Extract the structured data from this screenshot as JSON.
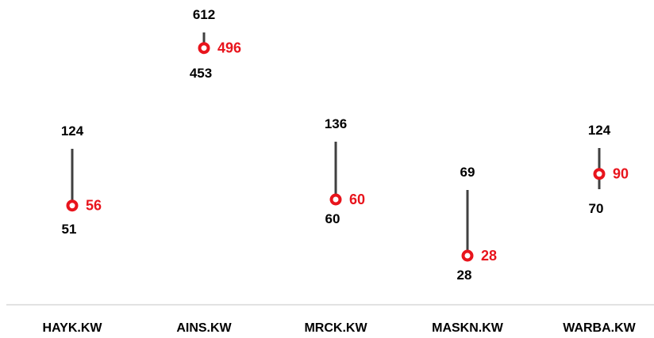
{
  "chart_data": {
    "type": "range-dot",
    "categories": [
      "HAYK.KW",
      "AINS.KW",
      "MRCK.KW",
      "MASKN.KW",
      "WARBA.KW"
    ],
    "series": [
      {
        "values": [
          124,
          612,
          136,
          69,
          124
        ]
      },
      {
        "values": [
          51,
          453,
          60,
          28,
          70
        ]
      },
      {
        "values": [
          56,
          496,
          60,
          28,
          90
        ]
      }
    ],
    "labels": {
      "high": [
        "124",
        "612",
        "136",
        "69",
        "124"
      ],
      "low": [
        "51",
        "453",
        "60",
        "28",
        "70"
      ],
      "current": [
        "56",
        "496",
        "60",
        "28",
        "90"
      ]
    },
    "colors": {
      "range_line": "#404040",
      "current_marker": "#e8141c",
      "label": "#000000",
      "current_label": "#e8141c",
      "axis": "#d9d9d9"
    },
    "grid": false,
    "legend": "none"
  }
}
